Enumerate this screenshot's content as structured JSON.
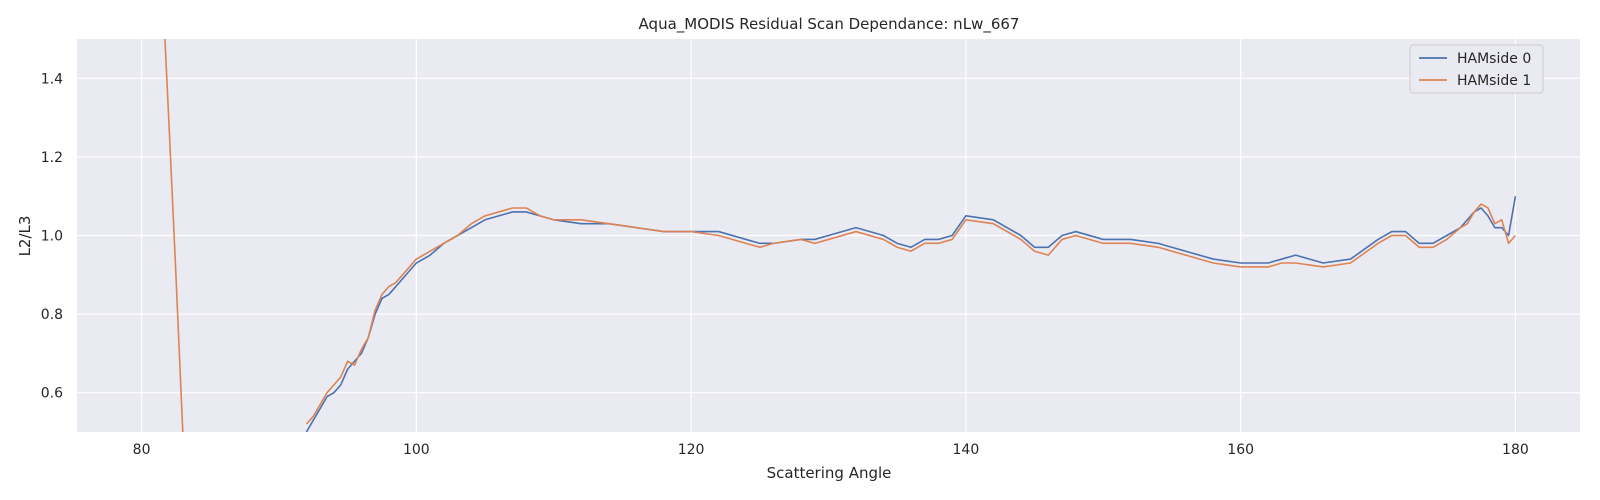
{
  "chart_data": {
    "type": "line",
    "title": "Aqua_MODIS Residual Scan Dependance: nLw_667",
    "xlabel": "Scattering Angle",
    "ylabel": "L2/L3",
    "xlim": [
      75.3,
      184.7
    ],
    "ylim": [
      0.5,
      1.5
    ],
    "xticks": [
      80,
      100,
      120,
      140,
      160,
      180
    ],
    "yticks": [
      0.6,
      0.8,
      1.0,
      1.2,
      1.4
    ],
    "xtick_labels": [
      "80",
      "100",
      "120",
      "140",
      "160",
      "180"
    ],
    "ytick_labels": [
      "0.6",
      "0.8",
      "1.0",
      "1.2",
      "1.4"
    ],
    "grid": true,
    "background": "#eaeaf2",
    "legend_position": "top-right",
    "series": [
      {
        "name": "HAMside 0",
        "color": "#4c72b0",
        "x": [
          92.0,
          92.5,
          93.0,
          93.5,
          94.0,
          94.5,
          95.0,
          95.5,
          96.0,
          96.5,
          97.0,
          97.5,
          98.0,
          98.5,
          99.0,
          99.5,
          100.0,
          101.0,
          102.0,
          103.0,
          104.0,
          105.0,
          106.0,
          107.0,
          108.0,
          109.0,
          110.0,
          112.0,
          114.0,
          116.0,
          118.0,
          120.0,
          122.0,
          124.0,
          125.0,
          126.0,
          128.0,
          129.0,
          130.0,
          132.0,
          134.0,
          135.0,
          136.0,
          137.0,
          138.0,
          139.0,
          140.0,
          142.0,
          144.0,
          145.0,
          146.0,
          147.0,
          148.0,
          150.0,
          152.0,
          154.0,
          156.0,
          158.0,
          160.0,
          161.0,
          162.0,
          163.0,
          164.0,
          166.0,
          168.0,
          170.0,
          171.0,
          172.0,
          173.0,
          174.0,
          175.0,
          176.0,
          176.5,
          177.0,
          177.5,
          178.0,
          178.5,
          179.0,
          179.5,
          180.0
        ],
        "y": [
          0.5,
          0.53,
          0.56,
          0.59,
          0.6,
          0.62,
          0.66,
          0.68,
          0.7,
          0.74,
          0.8,
          0.84,
          0.85,
          0.87,
          0.89,
          0.91,
          0.93,
          0.95,
          0.98,
          1.0,
          1.02,
          1.04,
          1.05,
          1.06,
          1.06,
          1.05,
          1.04,
          1.03,
          1.03,
          1.02,
          1.01,
          1.01,
          1.01,
          0.99,
          0.98,
          0.98,
          0.99,
          0.99,
          1.0,
          1.02,
          1.0,
          0.98,
          0.97,
          0.99,
          0.99,
          1.0,
          1.05,
          1.04,
          1.0,
          0.97,
          0.97,
          1.0,
          1.01,
          0.99,
          0.99,
          0.98,
          0.96,
          0.94,
          0.93,
          0.93,
          0.93,
          0.94,
          0.95,
          0.93,
          0.94,
          0.99,
          1.01,
          1.01,
          0.98,
          0.98,
          1.0,
          1.02,
          1.04,
          1.06,
          1.07,
          1.05,
          1.02,
          1.02,
          1.0,
          1.1
        ]
      },
      {
        "name": "HAMside 1",
        "color": "#dd8452",
        "x": [
          81.7,
          82.0,
          82.5,
          83.0,
          92.0,
          92.5,
          93.0,
          93.5,
          94.0,
          94.5,
          95.0,
          95.5,
          96.0,
          96.5,
          97.0,
          97.5,
          98.0,
          98.5,
          99.0,
          99.5,
          100.0,
          101.0,
          102.0,
          103.0,
          104.0,
          105.0,
          106.0,
          107.0,
          108.0,
          109.0,
          110.0,
          112.0,
          114.0,
          116.0,
          118.0,
          120.0,
          122.0,
          124.0,
          125.0,
          126.0,
          128.0,
          129.0,
          130.0,
          132.0,
          134.0,
          135.0,
          136.0,
          137.0,
          138.0,
          139.0,
          140.0,
          142.0,
          144.0,
          145.0,
          146.0,
          147.0,
          148.0,
          150.0,
          152.0,
          154.0,
          156.0,
          158.0,
          160.0,
          161.0,
          162.0,
          163.0,
          164.0,
          166.0,
          168.0,
          170.0,
          171.0,
          172.0,
          173.0,
          174.0,
          175.0,
          176.0,
          176.5,
          177.0,
          177.5,
          178.0,
          178.5,
          179.0,
          179.5,
          180.0
        ],
        "y": [
          1.5,
          1.28,
          0.9,
          0.5,
          0.52,
          0.54,
          0.57,
          0.6,
          0.62,
          0.64,
          0.68,
          0.67,
          0.71,
          0.74,
          0.81,
          0.85,
          0.87,
          0.88,
          0.9,
          0.92,
          0.94,
          0.96,
          0.98,
          1.0,
          1.03,
          1.05,
          1.06,
          1.07,
          1.07,
          1.05,
          1.04,
          1.04,
          1.03,
          1.02,
          1.01,
          1.01,
          1.0,
          0.98,
          0.97,
          0.98,
          0.99,
          0.98,
          0.99,
          1.01,
          0.99,
          0.97,
          0.96,
          0.98,
          0.98,
          0.99,
          1.04,
          1.03,
          0.99,
          0.96,
          0.95,
          0.99,
          1.0,
          0.98,
          0.98,
          0.97,
          0.95,
          0.93,
          0.92,
          0.92,
          0.92,
          0.93,
          0.93,
          0.92,
          0.93,
          0.98,
          1.0,
          1.0,
          0.97,
          0.97,
          0.99,
          1.02,
          1.03,
          1.06,
          1.08,
          1.07,
          1.03,
          1.04,
          0.98,
          1.0
        ]
      }
    ]
  }
}
